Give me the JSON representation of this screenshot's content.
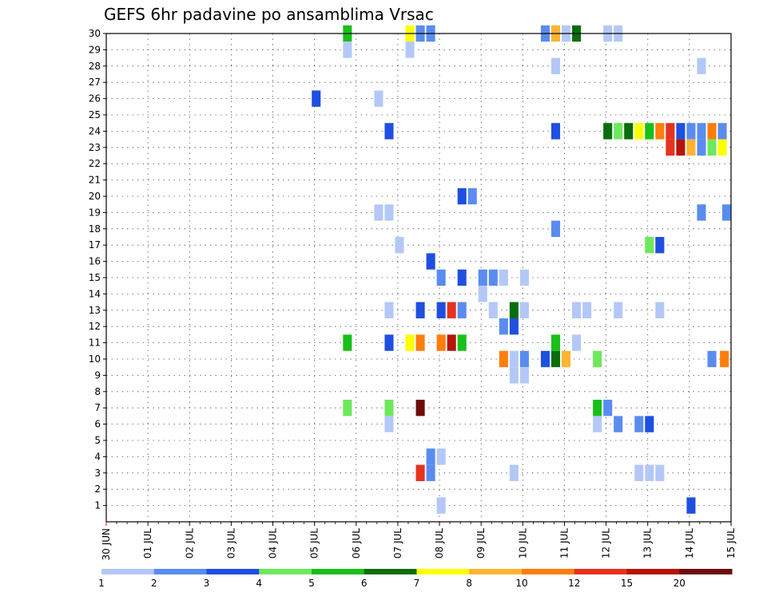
{
  "title": "GEFS 6hr padavine po ansamblima Vrsac",
  "chart_data": {
    "type": "heatmap",
    "title": "GEFS 6hr padavine po ansamblima Vrsac",
    "x_tick_labels": [
      "30 JUN",
      "01 JUL",
      "02 JUL",
      "03 JUL",
      "04 JUL",
      "05 JUL",
      "06 JUL",
      "07 JUL",
      "08 JUL",
      "09 JUL",
      "10 JUL",
      "11 JUL",
      "12 JUL",
      "13 JUL",
      "14 JUL",
      "15 JUL"
    ],
    "x_range_days": [
      0,
      15
    ],
    "time_step_hours": 6,
    "y_tick_labels": [
      "1",
      "2",
      "3",
      "4",
      "5",
      "6",
      "7",
      "8",
      "9",
      "10",
      "11",
      "12",
      "13",
      "14",
      "15",
      "16",
      "17",
      "18",
      "19",
      "20",
      "21",
      "22",
      "23",
      "24",
      "25",
      "26",
      "27",
      "28",
      "29",
      "30"
    ],
    "y_range": [
      0,
      30
    ],
    "grid": "dotted",
    "colorbar": {
      "labels": [
        "1",
        "2",
        "3",
        "4",
        "5",
        "6",
        "7",
        "8",
        "10",
        "12",
        "15",
        "20"
      ],
      "thresholds": [
        1,
        2,
        3,
        4,
        5,
        6,
        7,
        8,
        10,
        12,
        15,
        20
      ],
      "colors": [
        "#b4c8f8",
        "#5a8cf0",
        "#1e4fe0",
        "#6ee85c",
        "#18c018",
        "#0a6e0a",
        "#ffff00",
        "#ffb432",
        "#ff7d0a",
        "#e6321e",
        "#b4140a",
        "#6e0a0a"
      ]
    },
    "cells": [
      {
        "x": 5.79,
        "y": 30,
        "v": 5
      },
      {
        "x": 7.29,
        "y": 30,
        "v": 7
      },
      {
        "x": 7.54,
        "y": 30,
        "v": 2
      },
      {
        "x": 7.79,
        "y": 30,
        "v": 2
      },
      {
        "x": 10.54,
        "y": 30,
        "v": 2
      },
      {
        "x": 10.79,
        "y": 30,
        "v": 8
      },
      {
        "x": 11.04,
        "y": 30,
        "v": 1
      },
      {
        "x": 11.29,
        "y": 30,
        "v": 6
      },
      {
        "x": 12.04,
        "y": 30,
        "v": 1
      },
      {
        "x": 12.29,
        "y": 30,
        "v": 1
      },
      {
        "x": 5.79,
        "y": 29,
        "v": 1
      },
      {
        "x": 7.29,
        "y": 29,
        "v": 1
      },
      {
        "x": 10.79,
        "y": 28,
        "v": 1
      },
      {
        "x": 14.29,
        "y": 28,
        "v": 1
      },
      {
        "x": 5.04,
        "y": 26,
        "v": 3
      },
      {
        "x": 6.54,
        "y": 26,
        "v": 1
      },
      {
        "x": 6.79,
        "y": 24,
        "v": 3
      },
      {
        "x": 10.79,
        "y": 24,
        "v": 3
      },
      {
        "x": 12.04,
        "y": 24,
        "v": 6
      },
      {
        "x": 12.29,
        "y": 24,
        "v": 4
      },
      {
        "x": 12.54,
        "y": 24,
        "v": 6
      },
      {
        "x": 12.79,
        "y": 24,
        "v": 7
      },
      {
        "x": 13.04,
        "y": 24,
        "v": 5
      },
      {
        "x": 13.29,
        "y": 24,
        "v": 10
      },
      {
        "x": 13.54,
        "y": 24,
        "v": 12
      },
      {
        "x": 13.79,
        "y": 24,
        "v": 3
      },
      {
        "x": 14.04,
        "y": 24,
        "v": 2
      },
      {
        "x": 14.29,
        "y": 24,
        "v": 2
      },
      {
        "x": 14.54,
        "y": 24,
        "v": 10
      },
      {
        "x": 14.79,
        "y": 24,
        "v": 2
      },
      {
        "x": 13.54,
        "y": 23,
        "v": 12
      },
      {
        "x": 13.79,
        "y": 23,
        "v": 15
      },
      {
        "x": 14.04,
        "y": 23,
        "v": 8
      },
      {
        "x": 14.29,
        "y": 23,
        "v": 2
      },
      {
        "x": 14.54,
        "y": 23,
        "v": 4
      },
      {
        "x": 14.79,
        "y": 23,
        "v": 7
      },
      {
        "x": 8.54,
        "y": 20,
        "v": 3
      },
      {
        "x": 8.79,
        "y": 20,
        "v": 2
      },
      {
        "x": 6.54,
        "y": 19,
        "v": 1
      },
      {
        "x": 6.79,
        "y": 19,
        "v": 1
      },
      {
        "x": 14.29,
        "y": 19,
        "v": 2
      },
      {
        "x": 14.92,
        "y": 19,
        "v": 2
      },
      {
        "x": 10.79,
        "y": 18,
        "v": 2
      },
      {
        "x": 7.04,
        "y": 17,
        "v": 1
      },
      {
        "x": 13.04,
        "y": 17,
        "v": 4
      },
      {
        "x": 13.29,
        "y": 17,
        "v": 3
      },
      {
        "x": 7.79,
        "y": 16,
        "v": 3
      },
      {
        "x": 8.04,
        "y": 15,
        "v": 2
      },
      {
        "x": 8.54,
        "y": 15,
        "v": 3
      },
      {
        "x": 9.04,
        "y": 15,
        "v": 2
      },
      {
        "x": 9.29,
        "y": 15,
        "v": 2
      },
      {
        "x": 9.54,
        "y": 15,
        "v": 1
      },
      {
        "x": 10.04,
        "y": 15,
        "v": 1
      },
      {
        "x": 9.04,
        "y": 14,
        "v": 1
      },
      {
        "x": 6.79,
        "y": 13,
        "v": 1
      },
      {
        "x": 7.54,
        "y": 13,
        "v": 3
      },
      {
        "x": 8.04,
        "y": 13,
        "v": 3
      },
      {
        "x": 8.29,
        "y": 13,
        "v": 12
      },
      {
        "x": 8.54,
        "y": 13,
        "v": 2
      },
      {
        "x": 9.29,
        "y": 13,
        "v": 1
      },
      {
        "x": 9.79,
        "y": 13,
        "v": 6
      },
      {
        "x": 10.04,
        "y": 13,
        "v": 1
      },
      {
        "x": 11.29,
        "y": 13,
        "v": 1
      },
      {
        "x": 11.54,
        "y": 13,
        "v": 1
      },
      {
        "x": 12.29,
        "y": 13,
        "v": 1
      },
      {
        "x": 13.29,
        "y": 13,
        "v": 1
      },
      {
        "x": 9.54,
        "y": 12,
        "v": 2
      },
      {
        "x": 9.79,
        "y": 12,
        "v": 3
      },
      {
        "x": 5.79,
        "y": 11,
        "v": 5
      },
      {
        "x": 6.79,
        "y": 11,
        "v": 3
      },
      {
        "x": 7.29,
        "y": 11,
        "v": 7
      },
      {
        "x": 7.54,
        "y": 11,
        "v": 10
      },
      {
        "x": 8.04,
        "y": 11,
        "v": 10
      },
      {
        "x": 8.29,
        "y": 11,
        "v": 15
      },
      {
        "x": 8.54,
        "y": 11,
        "v": 5
      },
      {
        "x": 10.79,
        "y": 11,
        "v": 5
      },
      {
        "x": 11.29,
        "y": 11,
        "v": 1
      },
      {
        "x": 9.54,
        "y": 10,
        "v": 10
      },
      {
        "x": 9.79,
        "y": 10,
        "v": 1
      },
      {
        "x": 10.04,
        "y": 10,
        "v": 2
      },
      {
        "x": 10.54,
        "y": 10,
        "v": 3
      },
      {
        "x": 10.79,
        "y": 10,
        "v": 6
      },
      {
        "x": 11.04,
        "y": 10,
        "v": 8
      },
      {
        "x": 11.79,
        "y": 10,
        "v": 4
      },
      {
        "x": 14.54,
        "y": 10,
        "v": 2
      },
      {
        "x": 14.84,
        "y": 10,
        "v": 10
      },
      {
        "x": 9.79,
        "y": 9,
        "v": 1
      },
      {
        "x": 10.04,
        "y": 9,
        "v": 1
      },
      {
        "x": 5.79,
        "y": 7,
        "v": 4
      },
      {
        "x": 6.79,
        "y": 7,
        "v": 4
      },
      {
        "x": 7.54,
        "y": 7,
        "v": 20
      },
      {
        "x": 11.79,
        "y": 7,
        "v": 5
      },
      {
        "x": 12.04,
        "y": 7,
        "v": 2
      },
      {
        "x": 6.79,
        "y": 6,
        "v": 1
      },
      {
        "x": 11.79,
        "y": 6,
        "v": 1
      },
      {
        "x": 12.29,
        "y": 6,
        "v": 2
      },
      {
        "x": 12.79,
        "y": 6,
        "v": 2
      },
      {
        "x": 13.04,
        "y": 6,
        "v": 3
      },
      {
        "x": 7.79,
        "y": 4,
        "v": 2
      },
      {
        "x": 8.04,
        "y": 4,
        "v": 1
      },
      {
        "x": 7.54,
        "y": 3,
        "v": 12
      },
      {
        "x": 7.79,
        "y": 3,
        "v": 2
      },
      {
        "x": 9.79,
        "y": 3,
        "v": 1
      },
      {
        "x": 12.79,
        "y": 3,
        "v": 1
      },
      {
        "x": 13.04,
        "y": 3,
        "v": 1
      },
      {
        "x": 13.29,
        "y": 3,
        "v": 1
      },
      {
        "x": 8.04,
        "y": 1,
        "v": 1
      },
      {
        "x": 14.04,
        "y": 1,
        "v": 3
      }
    ]
  }
}
